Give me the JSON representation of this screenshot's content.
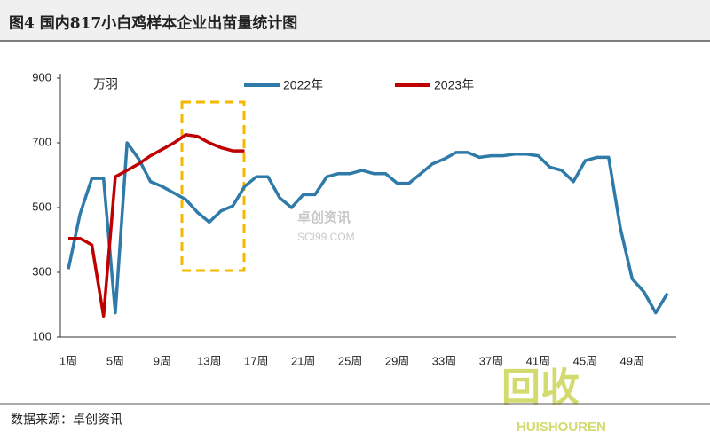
{
  "chart_data": {
    "type": "line",
    "title": "图4 国内817小白鸡样本企业出苗量统计图",
    "y_unit": "万羽",
    "source": "数据来源：卓创资讯",
    "watermarks": [
      "卓创资讯",
      "SCI99.COM",
      "回收",
      "HUISHOUREN"
    ],
    "categories": [
      "1周",
      null,
      null,
      null,
      "5周",
      null,
      null,
      null,
      "9周",
      null,
      null,
      null,
      "13周",
      null,
      null,
      null,
      "17周",
      null,
      null,
      null,
      "21周",
      null,
      null,
      null,
      "25周",
      null,
      null,
      null,
      "29周",
      null,
      null,
      null,
      "33周",
      null,
      null,
      null,
      "37周",
      null,
      null,
      null,
      "41周",
      null,
      null,
      null,
      "45周",
      null,
      null,
      null,
      "49周",
      null,
      null,
      null
    ],
    "series": [
      {
        "name": "2022年",
        "color": "#2e7aa8",
        "values": [
          310,
          480,
          590,
          590,
          175,
          700,
          650,
          580,
          565,
          545,
          525,
          485,
          455,
          490,
          505,
          565,
          595,
          595,
          530,
          500,
          540,
          540,
          595,
          605,
          605,
          615,
          605,
          605,
          575,
          575,
          605,
          635,
          650,
          670,
          670,
          655,
          660,
          660,
          665,
          665,
          660,
          625,
          615,
          580,
          645,
          655,
          655,
          435,
          280,
          240,
          175,
          235
        ]
      },
      {
        "name": "2023年",
        "color": "#c00000",
        "values": [
          405,
          405,
          385,
          165,
          595,
          615,
          635,
          660,
          680,
          700,
          725,
          720,
          700,
          685,
          675,
          675,
          null,
          null,
          null,
          null,
          null,
          null,
          null,
          null,
          null,
          null,
          null,
          null,
          null,
          null,
          null,
          null,
          null,
          null,
          null,
          null,
          null,
          null,
          null,
          null,
          null,
          null,
          null,
          null,
          null,
          null,
          null,
          null,
          null,
          null,
          null,
          null
        ]
      }
    ],
    "ylim": [
      100,
      900
    ],
    "yticks": [
      100,
      300,
      500,
      700,
      900
    ],
    "grid": false
  }
}
